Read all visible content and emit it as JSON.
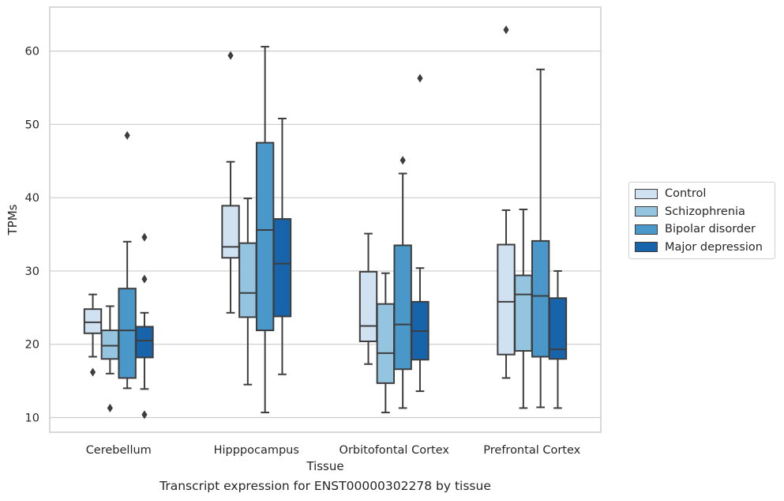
{
  "chart_data": {
    "type": "box",
    "xlabel": "Tissue",
    "ylabel": "TPMs",
    "ylim": [
      8,
      66
    ],
    "yticks": [
      10,
      20,
      30,
      40,
      50,
      60
    ],
    "grid": "horizontal",
    "legend_position": "right",
    "categories": [
      "Cerebellum",
      "Hipppocampus",
      "Orbitofontal Cortex",
      "Prefrontal Cortex"
    ],
    "series": [
      {
        "name": "Control",
        "color": "#d0e1f2",
        "boxes": [
          {
            "whisker_low": 18.3,
            "q1": 21.5,
            "median": 23.0,
            "q3": 24.8,
            "whisker_high": 26.8,
            "outliers": [
              16.2
            ]
          },
          {
            "whisker_low": 24.3,
            "q1": 31.8,
            "median": 33.3,
            "q3": 38.9,
            "whisker_high": 44.9,
            "outliers": [
              59.4
            ]
          },
          {
            "whisker_low": 17.3,
            "q1": 20.4,
            "median": 22.5,
            "q3": 29.9,
            "whisker_high": 35.1,
            "outliers": []
          },
          {
            "whisker_low": 15.4,
            "q1": 18.6,
            "median": 25.8,
            "q3": 33.6,
            "whisker_high": 38.3,
            "outliers": [
              62.9
            ]
          }
        ]
      },
      {
        "name": "Schizophrenia",
        "color": "#94c4df",
        "boxes": [
          {
            "whisker_low": 16.0,
            "q1": 18.0,
            "median": 19.8,
            "q3": 21.9,
            "whisker_high": 25.2,
            "outliers": [
              11.3
            ]
          },
          {
            "whisker_low": 14.5,
            "q1": 23.7,
            "median": 27.0,
            "q3": 33.8,
            "whisker_high": 39.9,
            "outliers": []
          },
          {
            "whisker_low": 10.7,
            "q1": 14.7,
            "median": 18.8,
            "q3": 25.5,
            "whisker_high": 29.7,
            "outliers": []
          },
          {
            "whisker_low": 11.3,
            "q1": 19.1,
            "median": 26.8,
            "q3": 29.4,
            "whisker_high": 38.4,
            "outliers": []
          }
        ]
      },
      {
        "name": "Bipolar disorder",
        "color": "#4a98c9",
        "boxes": [
          {
            "whisker_low": 14.0,
            "q1": 15.4,
            "median": 21.9,
            "q3": 27.6,
            "whisker_high": 34.0,
            "outliers": [
              48.5
            ]
          },
          {
            "whisker_low": 10.7,
            "q1": 21.9,
            "median": 35.6,
            "q3": 47.5,
            "whisker_high": 60.6,
            "outliers": []
          },
          {
            "whisker_low": 11.3,
            "q1": 16.6,
            "median": 22.7,
            "q3": 33.5,
            "whisker_high": 43.3,
            "outliers": [
              45.1
            ]
          },
          {
            "whisker_low": 11.4,
            "q1": 18.3,
            "median": 26.6,
            "q3": 34.1,
            "whisker_high": 57.5,
            "outliers": []
          }
        ]
      },
      {
        "name": "Major depression",
        "color": "#1764ab",
        "boxes": [
          {
            "whisker_low": 13.9,
            "q1": 18.2,
            "median": 20.5,
            "q3": 22.4,
            "whisker_high": 24.3,
            "outliers": [
              34.6,
              28.9,
              10.4
            ]
          },
          {
            "whisker_low": 15.9,
            "q1": 23.8,
            "median": 31.0,
            "q3": 37.1,
            "whisker_high": 50.8,
            "outliers": []
          },
          {
            "whisker_low": 13.6,
            "q1": 17.9,
            "median": 21.8,
            "q3": 25.8,
            "whisker_high": 30.4,
            "outliers": [
              56.3
            ]
          },
          {
            "whisker_low": 11.3,
            "q1": 18.0,
            "median": 19.3,
            "q3": 26.3,
            "whisker_high": 30.0,
            "outliers": []
          }
        ]
      }
    ]
  },
  "caption": "Transcript expression for ENST00000302278 by tissue"
}
